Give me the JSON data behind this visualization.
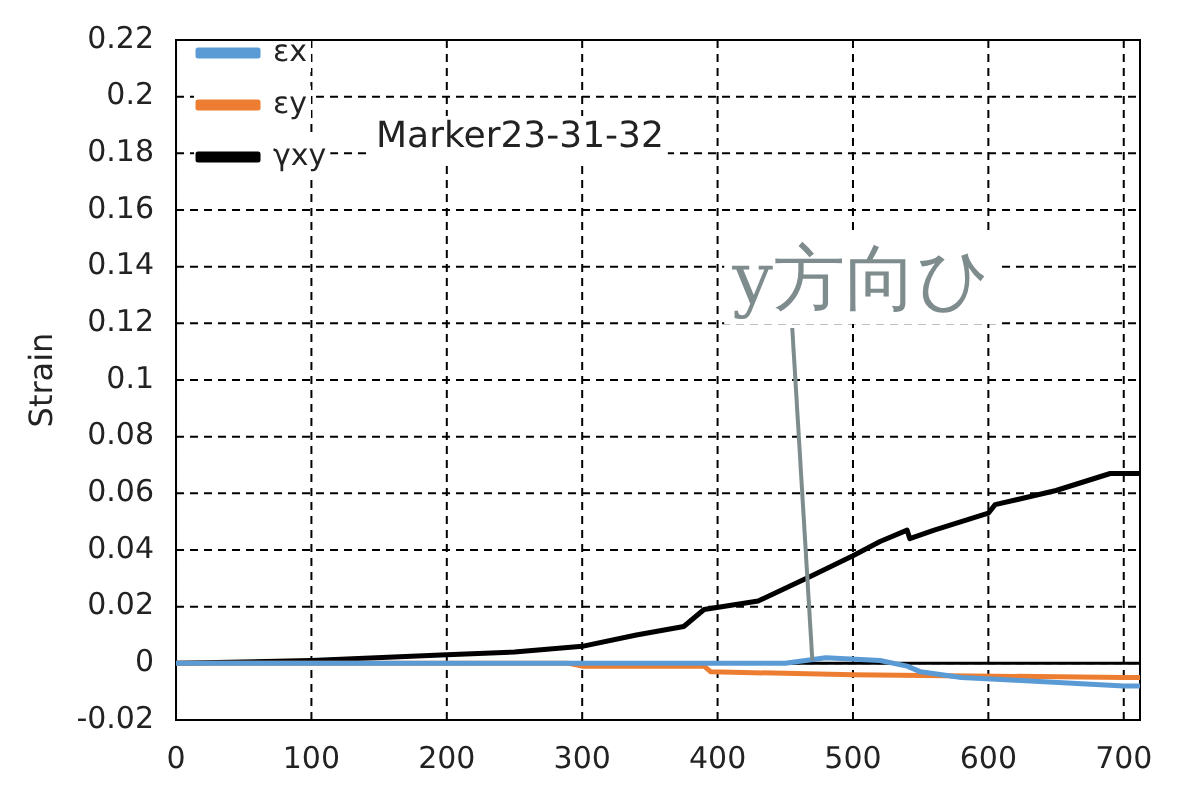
{
  "chart_data": {
    "type": "line",
    "ylabel": "Strain",
    "xlim": [
      0,
      712
    ],
    "xticks": [
      0,
      100,
      200,
      300,
      400,
      500,
      600,
      700
    ],
    "ylim": [
      -0.02,
      0.22
    ],
    "yticks": [
      -0.02,
      0,
      0.02,
      0.04,
      0.06,
      0.08,
      0.1,
      0.12,
      0.14,
      0.16,
      0.18,
      0.2,
      0.22
    ],
    "grid": true,
    "legend": "top left",
    "marker": "none",
    "line_style": "solid",
    "annotations": [
      "Marker23-31-32",
      {
        "text": "y方向ひ",
        "x": 470,
        "y": 0.001
      }
    ],
    "series": [
      {
        "name": "εx",
        "color": "#5b9bd5",
        "x": [
          0,
          300,
          450,
          480,
          520,
          540,
          550,
          580,
          620,
          700,
          712
        ],
        "values": [
          0,
          0,
          0,
          0.002,
          0.001,
          -0.001,
          -0.003,
          -0.005,
          -0.006,
          -0.008,
          -0.008
        ]
      },
      {
        "name": "εy",
        "color": "#ed7d31",
        "x": [
          0,
          290,
          300,
          390,
          395,
          500,
          700,
          712
        ],
        "values": [
          0,
          0,
          -0.001,
          -0.001,
          -0.003,
          -0.004,
          -0.005,
          -0.005
        ]
      },
      {
        "name": "γxy",
        "color": "#000000",
        "x": [
          0,
          100,
          200,
          250,
          300,
          340,
          375,
          390,
          430,
          470,
          500,
          520,
          540,
          542,
          560,
          600,
          605,
          650,
          690,
          712
        ],
        "values": [
          0,
          0.001,
          0.003,
          0.004,
          0.006,
          0.01,
          0.013,
          0.019,
          0.022,
          0.031,
          0.038,
          0.043,
          0.047,
          0.044,
          0.047,
          0.053,
          0.056,
          0.061,
          0.067,
          0.067
        ]
      }
    ]
  }
}
